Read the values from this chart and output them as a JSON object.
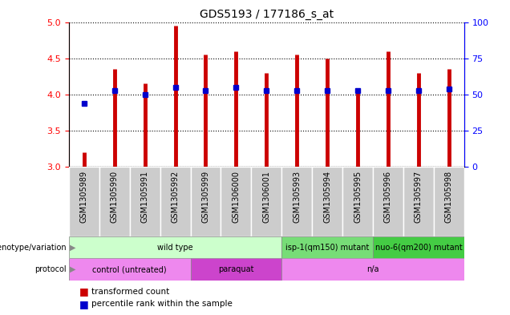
{
  "title": "GDS5193 / 177186_s_at",
  "samples": [
    "GSM1305989",
    "GSM1305990",
    "GSM1305991",
    "GSM1305992",
    "GSM1305999",
    "GSM1306000",
    "GSM1306001",
    "GSM1305993",
    "GSM1305994",
    "GSM1305995",
    "GSM1305996",
    "GSM1305997",
    "GSM1305998"
  ],
  "transformed_count": [
    3.2,
    4.35,
    4.15,
    4.95,
    4.55,
    4.6,
    4.3,
    4.55,
    4.5,
    4.05,
    4.6,
    4.3,
    4.35
  ],
  "percentile_rank": [
    3.88,
    4.05,
    4.0,
    4.1,
    4.05,
    4.1,
    4.05,
    4.05,
    4.05,
    4.05,
    4.05,
    4.05,
    4.08
  ],
  "ylim": [
    3.0,
    5.0
  ],
  "y2lim": [
    0,
    100
  ],
  "yticks": [
    3.0,
    3.5,
    4.0,
    4.5,
    5.0
  ],
  "y2ticks": [
    0,
    25,
    50,
    75,
    100
  ],
  "bar_color": "#cc0000",
  "dot_color": "#0000cc",
  "geno_spans": [
    {
      "start": 0,
      "end": 7,
      "label": "wild type",
      "color": "#ccffcc"
    },
    {
      "start": 7,
      "end": 10,
      "label": "isp-1(qm150) mutant",
      "color": "#77dd77"
    },
    {
      "start": 10,
      "end": 13,
      "label": "nuo-6(qm200) mutant",
      "color": "#44cc44"
    }
  ],
  "prot_spans": [
    {
      "start": 0,
      "end": 4,
      "label": "control (untreated)",
      "color": "#ee88ee"
    },
    {
      "start": 4,
      "end": 7,
      "label": "paraquat",
      "color": "#cc44cc"
    },
    {
      "start": 7,
      "end": 13,
      "label": "n/a",
      "color": "#ee88ee"
    }
  ],
  "legend_items": [
    {
      "label": "transformed count",
      "color": "#cc0000"
    },
    {
      "label": "percentile rank within the sample",
      "color": "#0000cc"
    }
  ],
  "tick_bg_color": "#cccccc",
  "plot_bg_color": "#ffffff"
}
